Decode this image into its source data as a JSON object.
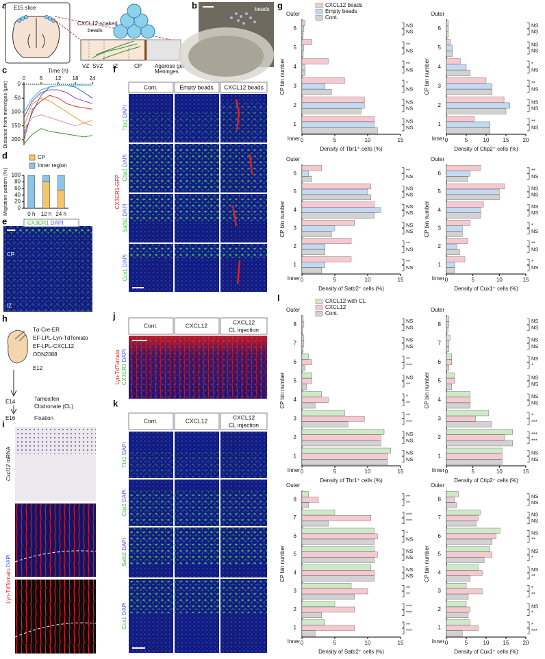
{
  "panel_labels": [
    "a",
    "b",
    "c",
    "d",
    "e",
    "f",
    "g",
    "h",
    "i",
    "j",
    "k",
    "l"
  ],
  "panels": {
    "a": {
      "title": "E15 slice",
      "beads_line1": "CXCL12-soaked",
      "beads_line2": "beads",
      "zones": [
        "VZ",
        "SVZ",
        "IZ",
        "CP"
      ],
      "gel": "Agarose gel",
      "meninges": "Meninges"
    },
    "b": {
      "label": "beads"
    },
    "e": {
      "marker": "CX3CR1",
      "counterstain": "DAPI",
      "zones": [
        "CP",
        "IZ"
      ]
    },
    "f": {
      "columns": [
        "Cont.",
        "Empty beads",
        "CXCL12 beads"
      ],
      "rows": [
        [
          "Tbr1",
          "DAPI"
        ],
        [
          "Ctip2",
          "DAPI"
        ],
        [
          "Satb2",
          "DAPI"
        ],
        [
          "Cux1",
          "DAPI"
        ]
      ],
      "side": "CX3CR1-GFP"
    },
    "h": {
      "constructs": [
        "Tα-Cre-ER",
        "EF-LPL-Lyn-TdTomato",
        "EF-LPL-CXCL12",
        "ODN2088"
      ],
      "ages": [
        "E12",
        "E14",
        "E16"
      ],
      "e14_events": [
        "Tamoxifen",
        "Clodronate (CL)"
      ],
      "e16_events": [
        "Fixation"
      ]
    },
    "i": {
      "gene": "Cxcl12",
      "probe": "mRNA",
      "reporter": "Lyn-TdTomato",
      "counterstain": "DAPI"
    },
    "j": {
      "columns": [
        "Cont.",
        "CXCL12",
        [
          "CXCL12",
          "CL injection"
        ]
      ],
      "side": [
        "Lyn-TdTomato",
        "CX3CR1",
        "DAPI"
      ]
    },
    "k": {
      "columns": [
        "Cont.",
        "CXCL12",
        [
          "CXCL12",
          "CL injection"
        ]
      ],
      "rows": [
        [
          "Tbr1",
          "DAPI"
        ],
        [
          "Ctip2",
          "DAPI"
        ],
        [
          "Satb2",
          "DAPI"
        ],
        [
          "Cux1",
          "DAPI"
        ]
      ]
    }
  },
  "chart_data": [
    {
      "type": "line",
      "xlabel": "Time (h)",
      "ylabel": "Distance from meninges (μm)",
      "x": [
        0,
        3,
        6,
        9,
        12,
        15,
        18,
        21,
        24
      ],
      "xlim": [
        0,
        24
      ],
      "xticks": [
        0,
        6,
        12,
        18,
        24
      ],
      "ylim": [
        220,
        0
      ],
      "yticks": [
        0,
        50,
        100,
        150,
        200
      ],
      "series": [
        {
          "color": "#2e9a2e",
          "values": [
            215,
            180,
            160,
            170,
            175,
            180,
            185,
            190,
            185
          ]
        },
        {
          "color": "#e03030",
          "values": [
            200,
            90,
            60,
            40,
            50,
            70,
            80,
            85,
            90
          ]
        },
        {
          "color": "#3366cc",
          "values": [
            180,
            100,
            40,
            10,
            5,
            5,
            10,
            30,
            50
          ]
        },
        {
          "color": "#f39a1e",
          "values": [
            150,
            70,
            50,
            60,
            80,
            100,
            120,
            140,
            130
          ]
        },
        {
          "color": "#9933cc",
          "values": [
            120,
            60,
            30,
            20,
            20,
            30,
            50,
            60,
            70
          ]
        },
        {
          "color": "#22bbcc",
          "values": [
            100,
            50,
            20,
            10,
            5,
            5,
            5,
            5,
            5
          ]
        },
        {
          "color": "#f58aa8",
          "values": [
            160,
            120,
            110,
            120,
            130,
            140,
            150,
            140,
            150
          ]
        }
      ]
    },
    {
      "type": "stacked",
      "ylabel": "Migration pattern (%)",
      "categories": [
        "0 h",
        "12 h",
        "24 h"
      ],
      "ylim": [
        0,
        100
      ],
      "yticks": [
        0,
        20,
        40,
        60,
        80,
        100
      ],
      "series": [
        {
          "name": "CP",
          "color": "#f7c46b",
          "values": [
            0,
            80,
            55
          ]
        },
        {
          "name": "Inner region",
          "color": "#8cc4ea",
          "values": [
            100,
            20,
            45
          ]
        }
      ]
    },
    {
      "type": "hbar",
      "xlabel": "Density of Tbr1⁺ cells (%)",
      "ylabel": "CP bin number",
      "ends": [
        "Inner",
        "Outer"
      ],
      "legend": "top",
      "categories": [
        "1",
        "2",
        "3",
        "4",
        "5",
        "6"
      ],
      "xlim": [
        0,
        15
      ],
      "xticks": [
        0,
        5,
        10,
        15
      ],
      "series": [
        {
          "name": "CXCL12 beads",
          "color": "#f6c9d1",
          "values": [
            11,
            9.5,
            6.5,
            4,
            1.5,
            0.5
          ]
        },
        {
          "name": "Empty beads",
          "color": "#c4daf2",
          "values": [
            11,
            9.5,
            3.5,
            0.5,
            0.3,
            0.3
          ]
        },
        {
          "name": "Cont.",
          "color": "#d2d2d2",
          "values": [
            11.5,
            9,
            4.5,
            0.5,
            0.2,
            0.2
          ]
        }
      ],
      "sig": [
        [
          "NS",
          "NS"
        ],
        [
          "NS",
          "NS"
        ],
        [
          "*",
          "NS"
        ],
        [
          "**",
          "NS"
        ],
        [
          "**",
          "NS"
        ],
        [
          "NS",
          "NS"
        ]
      ]
    },
    {
      "type": "hbar",
      "xlabel": "Density of Ctip2⁺ cells (%)",
      "ylabel": "CP bin number",
      "ends": [
        "Inner",
        "Outer"
      ],
      "categories": [
        "1",
        "2",
        "3",
        "4",
        "5",
        "6"
      ],
      "xlim": [
        0,
        20
      ],
      "xticks": [
        0,
        5,
        10,
        15,
        20
      ],
      "series": [
        {
          "color": "#f6c9d1",
          "values": [
            7,
            14.5,
            10,
            3.5,
            1,
            0.5
          ]
        },
        {
          "color": "#c4daf2",
          "values": [
            11,
            16,
            11.5,
            5,
            1.5,
            0.5
          ]
        },
        {
          "color": "#d2d2d2",
          "values": [
            11,
            15,
            11.5,
            6,
            1.5,
            0.5
          ]
        }
      ],
      "sig": [
        [
          "**",
          "NS"
        ],
        [
          "NS",
          "NS"
        ],
        [
          "**",
          "NS"
        ],
        [
          "*",
          "NS"
        ],
        [
          "NS",
          "NS"
        ],
        [
          "NS",
          "NS"
        ]
      ]
    },
    {
      "type": "hbar",
      "xlabel": "Density of Satb2⁺ cells (%)",
      "ylabel": "CP bin number",
      "ends": [
        "Inner",
        "Outer"
      ],
      "categories": [
        "1",
        "2",
        "3",
        "4",
        "5",
        "6"
      ],
      "xlim": [
        0,
        15
      ],
      "xticks": [
        0,
        5,
        10,
        15
      ],
      "series": [
        {
          "color": "#f6c9d1",
          "values": [
            7.5,
            7.5,
            8,
            11,
            10.5,
            3
          ]
        },
        {
          "color": "#c4daf2",
          "values": [
            3.5,
            3.5,
            5,
            12,
            10,
            1
          ]
        },
        {
          "color": "#d2d2d2",
          "values": [
            3,
            3.5,
            4.5,
            11,
            10.5,
            1.5
          ]
        }
      ],
      "sig": [
        [
          "**",
          "NS"
        ],
        [
          "**",
          "NS"
        ],
        [
          "NS",
          "NS"
        ],
        [
          "NS",
          "NS"
        ],
        [
          "NS",
          "NS"
        ],
        [
          "**",
          "NS"
        ]
      ]
    },
    {
      "type": "hbar",
      "xlabel": "Density of Cux1⁺ cells (%)",
      "ylabel": "CP bin number",
      "ends": [
        "Inner",
        "Outer"
      ],
      "categories": [
        "1",
        "2",
        "3",
        "4",
        "5",
        "6"
      ],
      "xlim": [
        0,
        15
      ],
      "xticks": [
        0,
        5,
        10,
        15
      ],
      "series": [
        {
          "color": "#f6c9d1",
          "values": [
            3.5,
            4,
            4.5,
            7,
            11,
            6.5
          ]
        },
        {
          "color": "#c4daf2",
          "values": [
            1.5,
            2,
            3,
            6.5,
            10,
            4.5
          ]
        },
        {
          "color": "#d2d2d2",
          "values": [
            1.5,
            2.5,
            3,
            6.5,
            10,
            4
          ]
        }
      ],
      "sig": [
        [
          "*",
          "NS"
        ],
        [
          "**",
          "NS"
        ],
        [
          "*",
          "NS"
        ],
        [
          "NS",
          "NS"
        ],
        [
          "NS",
          "NS"
        ],
        [
          "**",
          "NS"
        ]
      ]
    },
    {
      "type": "hbar",
      "xlabel": "Density of Tbr1⁺ cells (%)",
      "ylabel": "CP bin number",
      "ends": [
        "Inner",
        "Outer"
      ],
      "legend": "top",
      "categories": [
        "1",
        "2",
        "3",
        "4",
        "5",
        "6",
        "7",
        "8"
      ],
      "xlim": [
        0,
        15
      ],
      "xticks": [
        0,
        5,
        10,
        15
      ],
      "series": [
        {
          "name": "CXCL12 with CL",
          "color": "#cfe9c8",
          "values": [
            13.5,
            12.5,
            6.5,
            3,
            1.5,
            1,
            0.3,
            0.2
          ]
        },
        {
          "name": "CXCL12",
          "color": "#f6c9d1",
          "values": [
            13,
            12,
            9.5,
            4,
            1.5,
            1.5,
            0.3,
            0.3
          ]
        },
        {
          "name": "Cont.",
          "color": "#d2d2d2",
          "values": [
            13,
            12,
            7,
            2,
            0.7,
            0.5,
            0.2,
            0.1
          ]
        }
      ],
      "sig": [
        [
          "NS",
          "NS"
        ],
        [
          "NS",
          "NS"
        ],
        [
          "**",
          "***"
        ],
        [
          "*",
          "**"
        ],
        [
          "NS",
          "**"
        ],
        [
          "**",
          "***"
        ],
        [
          "NS",
          "NS"
        ],
        [
          "NS",
          "NS"
        ]
      ]
    },
    {
      "type": "hbar",
      "xlabel": "Density of Ctip2⁺ cells (%)",
      "ylabel": "CP bin number",
      "ends": [
        "Inner",
        "Outer"
      ],
      "categories": [
        "1",
        "2",
        "3",
        "4",
        "5",
        "6",
        "7",
        "8"
      ],
      "xlim": [
        0,
        15
      ],
      "xticks": [
        0,
        5,
        10,
        15
      ],
      "series": [
        {
          "color": "#cfe9c8",
          "values": [
            10.5,
            12.5,
            8,
            4.5,
            1.5,
            1,
            0.7,
            0.5
          ]
        },
        {
          "color": "#f6c9d1",
          "values": [
            10.5,
            11,
            5.5,
            4.5,
            1.5,
            1,
            0.5,
            0.5
          ]
        },
        {
          "color": "#d2d2d2",
          "values": [
            10.5,
            12.5,
            8.5,
            4.5,
            1,
            0.5,
            0.5,
            0.3
          ]
        }
      ],
      "sig": [
        [
          "NS",
          "NS"
        ],
        [
          "***",
          "***"
        ],
        [
          "*",
          "***"
        ],
        [
          "NS",
          "NS"
        ],
        [
          "NS",
          "NS"
        ],
        [
          "NS",
          "*"
        ],
        [
          "NS",
          "NS"
        ],
        [
          "NS",
          "NS"
        ]
      ]
    },
    {
      "type": "hbar",
      "xlabel": "Density of Satb2⁺ cells (%)",
      "ylabel": "CP bin number",
      "ends": [
        "Inner",
        "Outer"
      ],
      "categories": [
        "1",
        "2",
        "3",
        "4",
        "5",
        "6",
        "7",
        "8"
      ],
      "xlim": [
        0,
        15
      ],
      "xticks": [
        0,
        5,
        10,
        15
      ],
      "series": [
        {
          "color": "#cfe9c8",
          "values": [
            3.5,
            5,
            7.5,
            10.5,
            11,
            11,
            5,
            1
          ]
        },
        {
          "color": "#f6c9d1",
          "values": [
            8,
            8,
            10,
            11,
            11.5,
            11.5,
            10.5,
            2.5
          ]
        },
        {
          "color": "#d2d2d2",
          "values": [
            2,
            3,
            8,
            11,
            11,
            11,
            4,
            1
          ]
        }
      ],
      "sig": [
        [
          "**",
          "***"
        ],
        [
          "***",
          "***"
        ],
        [
          "**",
          "**"
        ],
        [
          "NS",
          "NS"
        ],
        [
          "NS",
          "NS"
        ],
        [
          "*",
          "NS"
        ],
        [
          "***",
          "***"
        ],
        [
          "**",
          "**"
        ]
      ]
    },
    {
      "type": "hbar",
      "xlabel": "Density of Cux1⁺ cells (%)",
      "ylabel": "CP bin number",
      "ends": [
        "Inner",
        "Outer"
      ],
      "categories": [
        "1",
        "2",
        "3",
        "4",
        "5",
        "6",
        "7",
        "8"
      ],
      "xlim": [
        0,
        20
      ],
      "xticks": [
        0,
        5,
        10,
        15,
        20
      ],
      "series": [
        {
          "color": "#cfe9c8",
          "values": [
            6,
            5,
            5,
            8,
            11,
            13.5,
            8.5,
            3
          ]
        },
        {
          "color": "#f6c9d1",
          "values": [
            8,
            6,
            9,
            9,
            11.5,
            12.5,
            8,
            2
          ]
        },
        {
          "color": "#d2d2d2",
          "values": [
            4,
            5.5,
            5.5,
            6,
            9.5,
            11.5,
            7.5,
            2.5
          ]
        }
      ],
      "sig": [
        [
          "*",
          "***"
        ],
        [
          "NS",
          "*"
        ],
        [
          "*",
          "**"
        ],
        [
          "NS",
          "**"
        ],
        [
          "NS",
          "*"
        ],
        [
          "NS",
          "**"
        ],
        [
          "NS",
          "NS"
        ],
        [
          "NS",
          "NS"
        ]
      ]
    }
  ]
}
